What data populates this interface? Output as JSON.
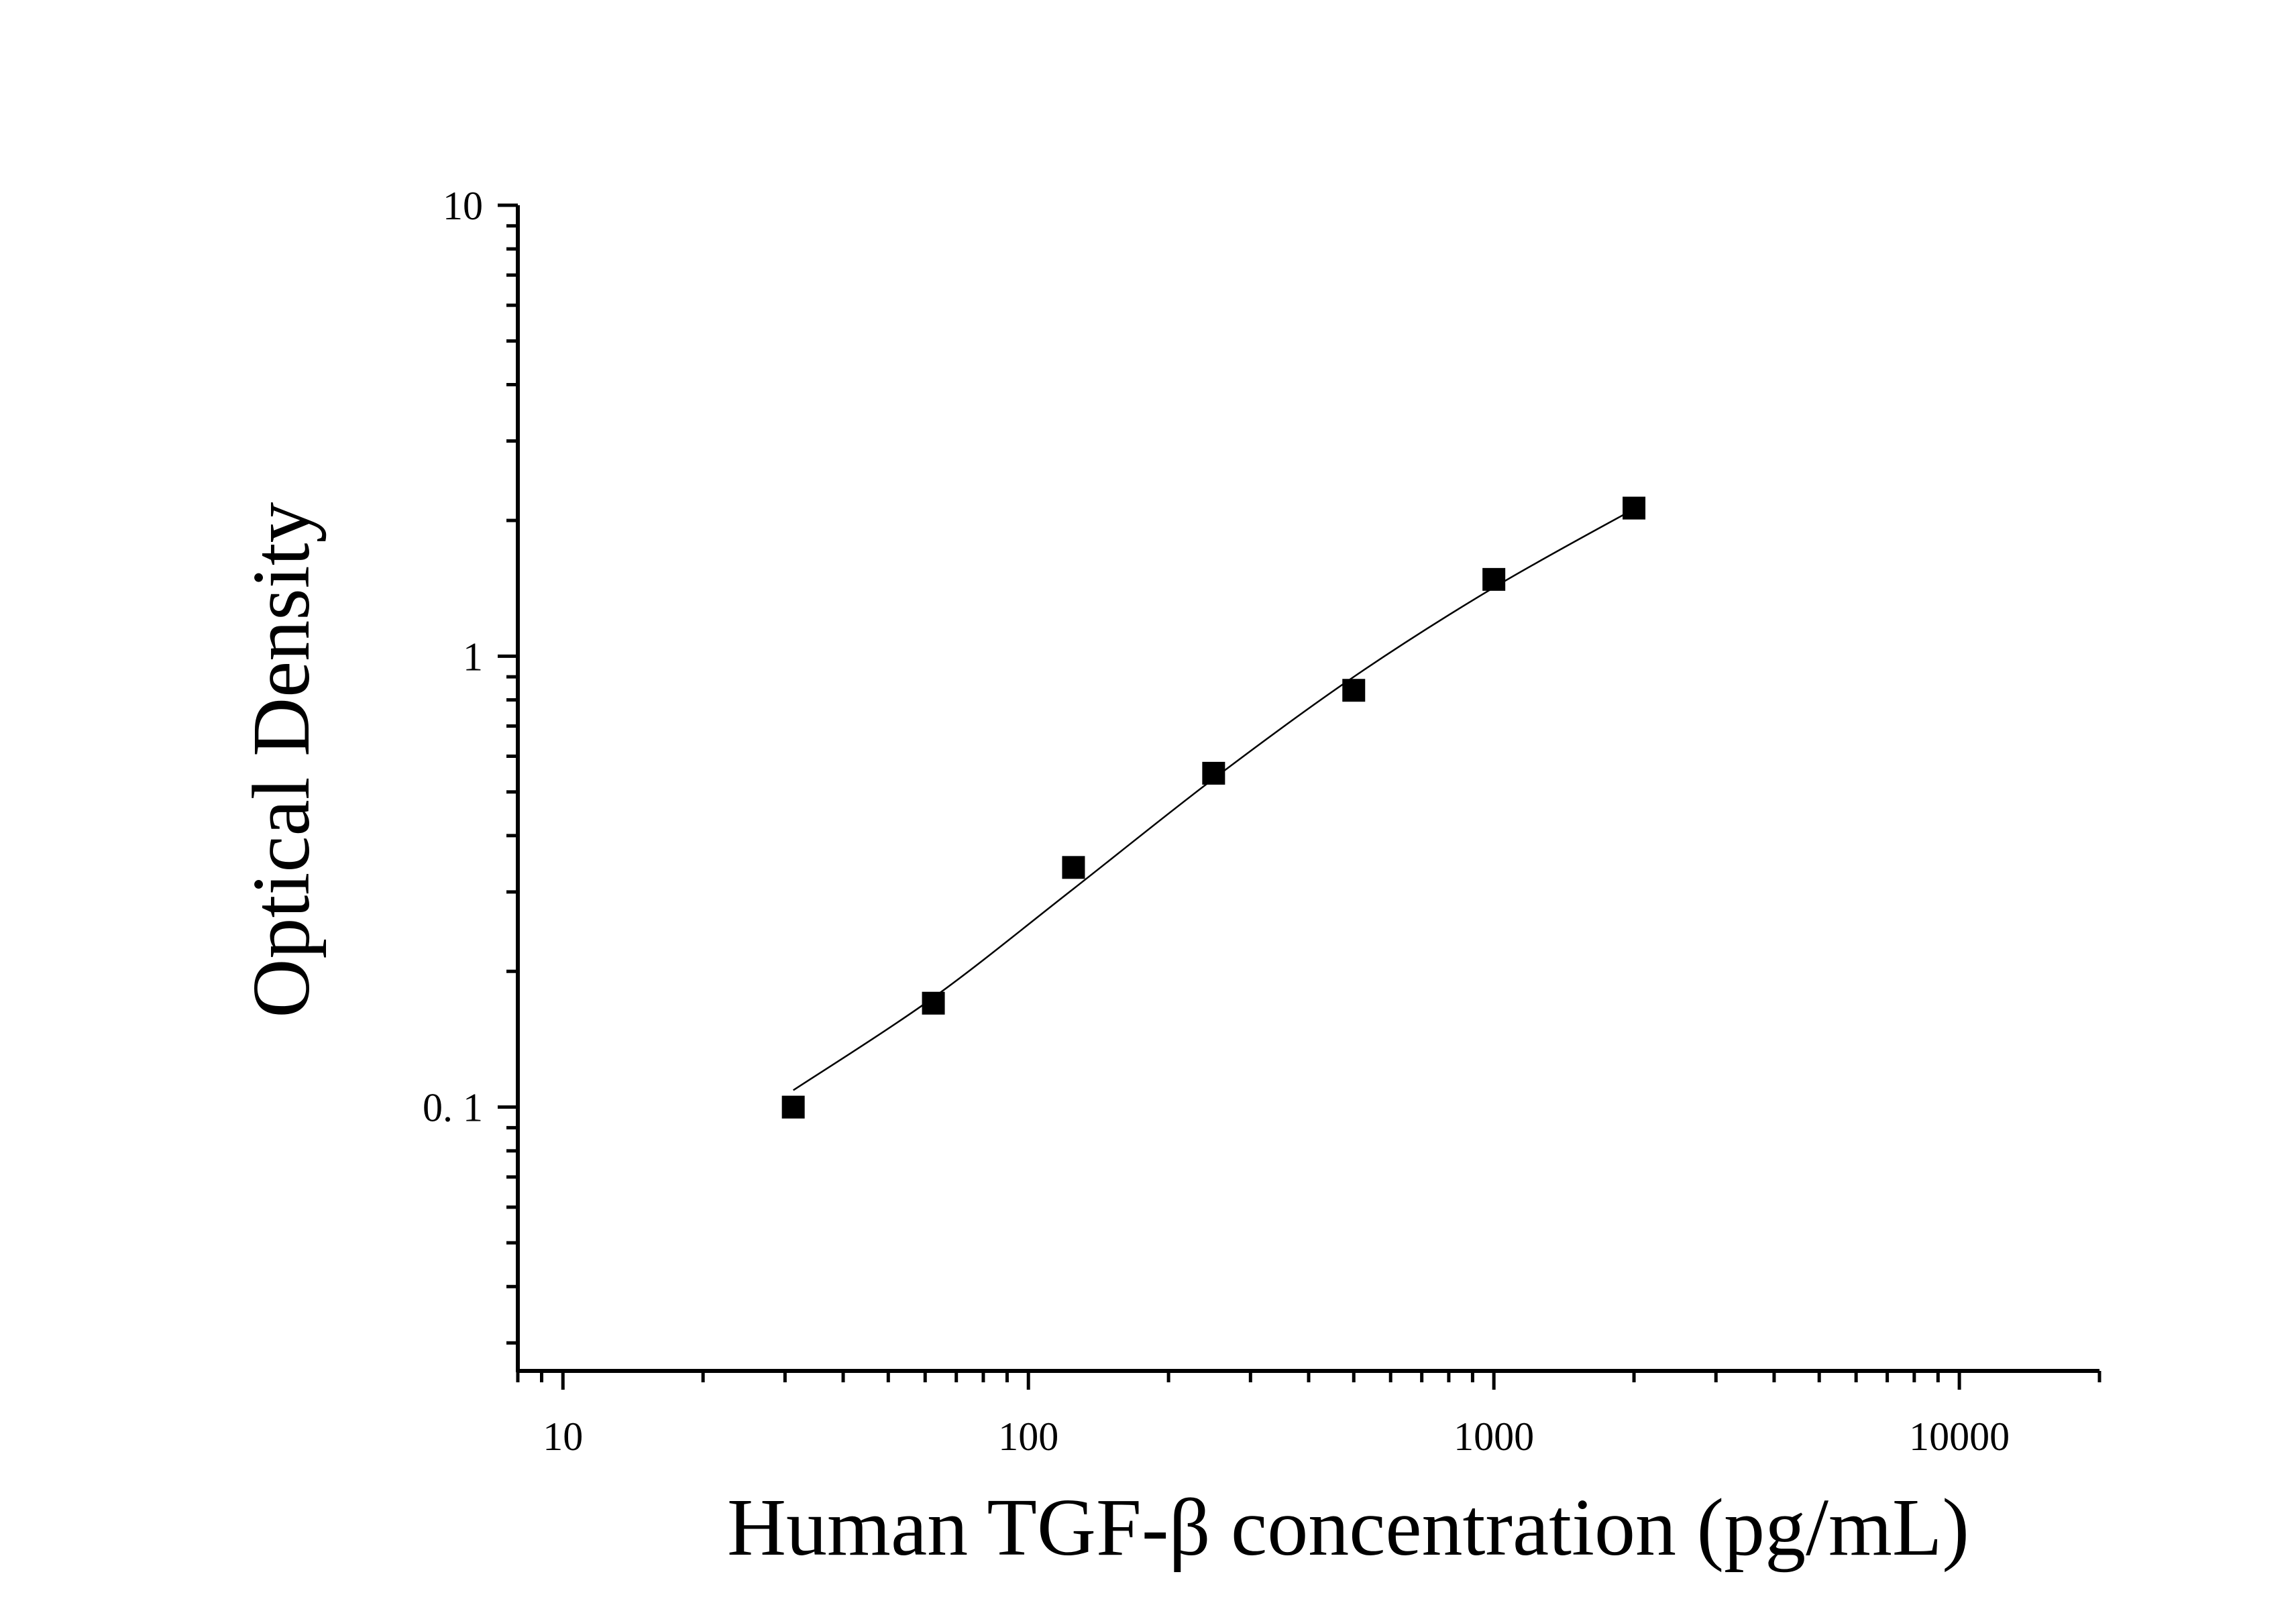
{
  "chart_data": {
    "type": "scatter",
    "title": "",
    "xlabel": "Human TGF-β concentration (pg/mL)",
    "ylabel": "Optical Density",
    "x_scale": "log",
    "y_scale": "log",
    "xlim": [
      8,
      20000
    ],
    "ylim": [
      0.026,
      10
    ],
    "x_ticks": [
      {
        "value": 10,
        "label": "10"
      },
      {
        "value": 100,
        "label": "100"
      },
      {
        "value": 1000,
        "label": "1000"
      },
      {
        "value": 10000,
        "label": "10000"
      }
    ],
    "y_ticks": [
      {
        "value": 0.1,
        "label": "0. 1"
      },
      {
        "value": 1,
        "label": "1"
      },
      {
        "value": 10,
        "label": "10"
      }
    ],
    "grid": false,
    "legend": "none",
    "marker": "square",
    "marker_color": "#000000",
    "line_color": "#000000",
    "series": [
      {
        "points": [
          {
            "x": 31.25,
            "y": 0.1
          },
          {
            "x": 62.5,
            "y": 0.17
          },
          {
            "x": 125,
            "y": 0.34
          },
          {
            "x": 250,
            "y": 0.55
          },
          {
            "x": 500,
            "y": 0.84
          },
          {
            "x": 1000,
            "y": 1.48
          },
          {
            "x": 2000,
            "y": 2.13
          }
        ],
        "fit_curve": [
          {
            "x": 31.25,
            "y": 0.109
          },
          {
            "x": 62.5,
            "y": 0.175
          },
          {
            "x": 125,
            "y": 0.305
          },
          {
            "x": 250,
            "y": 0.535
          },
          {
            "x": 500,
            "y": 0.9
          },
          {
            "x": 1000,
            "y": 1.42
          },
          {
            "x": 2000,
            "y": 2.12
          }
        ]
      }
    ]
  }
}
